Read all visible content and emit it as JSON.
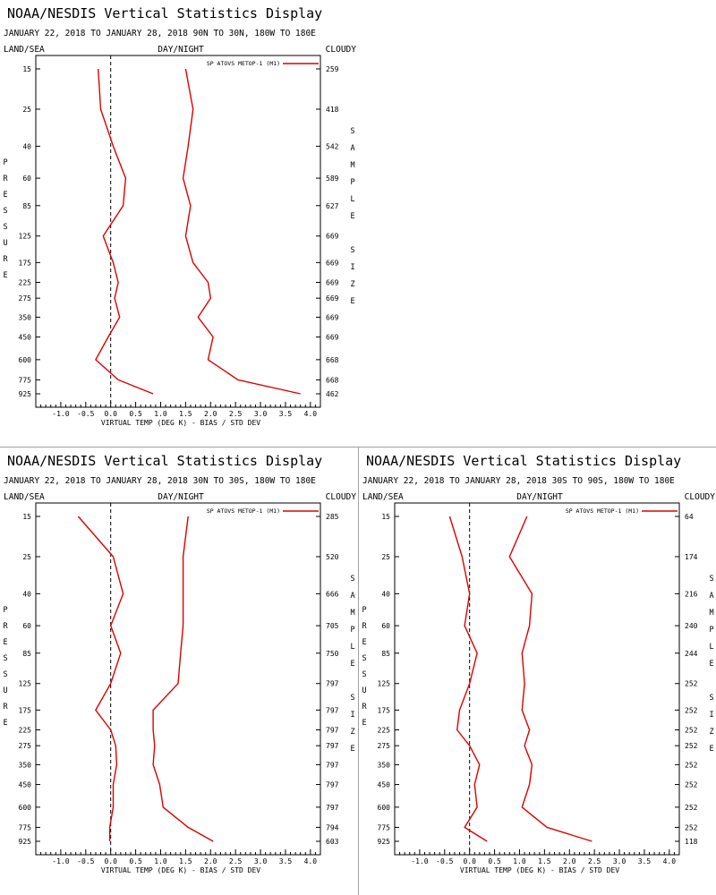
{
  "panel_text": {
    "title": "NOAA/NESDIS Vertical Statistics Display",
    "land_sea": "LAND/SEA",
    "day_night": "DAY/NIGHT",
    "cloudy": "CLOUDY",
    "left_axis_letters": [
      "P",
      "R",
      "E",
      "S",
      "S",
      "U",
      "R",
      "E"
    ],
    "right_axis_letters": [
      "S",
      "A",
      "M",
      "P",
      "L",
      "E",
      "",
      "S",
      "I",
      "Z",
      "E"
    ]
  },
  "chart_data": [
    {
      "type": "line",
      "title": "NOAA/NESDIS Vertical Statistics Display",
      "subtitle": "JANUARY 22, 2018 TO JANUARY 28, 2018 90N TO 30N, 180W TO 180E",
      "xlabel": "VIRTUAL TEMP (DEG K) - BIAS / STD DEV",
      "ylabel": "PRESSURE",
      "y2label": "SAMPLE SIZE",
      "xlim": [
        -1.5,
        4.2
      ],
      "x_ticks": [
        -1.0,
        -0.5,
        0.0,
        0.5,
        1.0,
        1.5,
        2.0,
        2.5,
        3.0,
        3.5,
        4.0
      ],
      "pressure_levels": [
        "15",
        "25",
        "40",
        "60",
        "85",
        "125",
        "175",
        "225",
        "275",
        "350",
        "450",
        "600",
        "775",
        "925"
      ],
      "sample_size": [
        "259",
        "418",
        "542",
        "589",
        "627",
        "669",
        "669",
        "669",
        "669",
        "669",
        "669",
        "668",
        "668",
        "462"
      ],
      "legend": "SP ATOVS METOP-1 (M1)",
      "series": [
        {
          "name": "bias",
          "values": [
            -0.25,
            -0.2,
            0.05,
            0.3,
            0.25,
            -0.15,
            0.05,
            0.15,
            0.08,
            0.18,
            -0.05,
            -0.3,
            0.15,
            0.85
          ]
        },
        {
          "name": "std dev",
          "values": [
            1.5,
            1.65,
            1.55,
            1.45,
            1.6,
            1.5,
            1.65,
            1.95,
            2.0,
            1.75,
            2.05,
            1.95,
            2.55,
            3.8
          ]
        }
      ]
    },
    {
      "type": "line",
      "title": "NOAA/NESDIS Vertical Statistics Display",
      "subtitle": "JANUARY 22, 2018 TO JANUARY 28, 2018 30N TO 30S, 180W TO 180E",
      "xlabel": "VIRTUAL TEMP (DEG K) - BIAS / STD DEV",
      "ylabel": "PRESSURE",
      "y2label": "SAMPLE SIZE",
      "xlim": [
        -1.5,
        4.2
      ],
      "x_ticks": [
        -1.0,
        -0.5,
        0.0,
        0.5,
        1.0,
        1.5,
        2.0,
        2.5,
        3.0,
        3.5,
        4.0
      ],
      "pressure_levels": [
        "15",
        "25",
        "40",
        "60",
        "85",
        "125",
        "175",
        "225",
        "275",
        "350",
        "450",
        "600",
        "775",
        "925"
      ],
      "sample_size": [
        "285",
        "520",
        "666",
        "705",
        "750",
        "797",
        "797",
        "797",
        "797",
        "797",
        "797",
        "797",
        "794",
        "603"
      ],
      "legend": "SP ATOVS METOP-1 (M1)",
      "series": [
        {
          "name": "bias",
          "values": [
            -0.65,
            0.05,
            0.25,
            0.0,
            0.2,
            0.0,
            -0.3,
            0.0,
            0.1,
            0.12,
            0.05,
            0.05,
            -0.02,
            -0.02
          ]
        },
        {
          "name": "std dev",
          "values": [
            1.55,
            1.45,
            1.45,
            1.45,
            1.4,
            1.35,
            0.85,
            0.85,
            0.88,
            0.85,
            0.98,
            1.05,
            1.55,
            2.05
          ]
        }
      ]
    },
    {
      "type": "line",
      "title": "NOAA/NESDIS Vertical Statistics Display",
      "subtitle": "JANUARY 22, 2018 TO JANUARY 28, 2018 30S TO 90S, 180W TO 180E",
      "xlabel": "VIRTUAL TEMP (DEG K) - BIAS / STD DEV",
      "ylabel": "PRESSURE",
      "y2label": "SAMPLE SIZE",
      "xlim": [
        -1.5,
        4.2
      ],
      "x_ticks": [
        -1.0,
        -0.5,
        0.0,
        0.5,
        1.0,
        1.5,
        2.0,
        2.5,
        3.0,
        3.5,
        4.0
      ],
      "pressure_levels": [
        "15",
        "25",
        "40",
        "60",
        "85",
        "125",
        "175",
        "225",
        "275",
        "350",
        "450",
        "600",
        "775",
        "925"
      ],
      "sample_size": [
        "64",
        "174",
        "216",
        "240",
        "244",
        "252",
        "252",
        "252",
        "252",
        "252",
        "252",
        "252",
        "252",
        "118"
      ],
      "legend": "SP ATOVS METOP-1 (M1)",
      "series": [
        {
          "name": "bias",
          "values": [
            -0.4,
            -0.15,
            0.0,
            -0.1,
            0.15,
            0.0,
            -0.2,
            -0.25,
            0.0,
            0.2,
            0.1,
            0.15,
            -0.1,
            0.35
          ]
        },
        {
          "name": "std dev",
          "values": [
            1.15,
            0.8,
            1.25,
            1.2,
            1.05,
            1.1,
            1.05,
            1.2,
            1.1,
            1.25,
            1.2,
            1.05,
            1.55,
            2.45
          ]
        }
      ]
    }
  ],
  "colors": {
    "series": "#dd0000",
    "axis": "#000000",
    "zero_line": "#000000",
    "divider": "#a0a0a0"
  }
}
